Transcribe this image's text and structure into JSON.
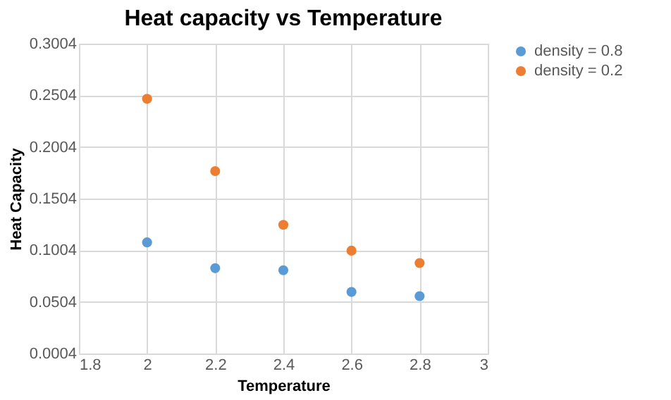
{
  "chart_data": {
    "type": "scatter",
    "title": "Heat capacity vs Temperature",
    "xlabel": "Temperature",
    "ylabel": "Heat Capacity",
    "x": [
      2,
      2.2,
      2.4,
      2.6,
      2.8
    ],
    "series": [
      {
        "name": "density = 0.8",
        "color": "#5b9bd5",
        "values": [
          0.108,
          0.083,
          0.081,
          0.06,
          0.056
        ]
      },
      {
        "name": "density = 0.2",
        "color": "#ed7d31",
        "values": [
          0.247,
          0.177,
          0.125,
          0.1,
          0.088
        ]
      }
    ],
    "xlim": [
      1.8,
      3
    ],
    "xticks": [
      1.8,
      2,
      2.2,
      2.4,
      2.6,
      2.8,
      3
    ],
    "ylim": [
      0.0004,
      0.3004
    ],
    "yticks": [
      0.0004,
      0.0504,
      0.1004,
      0.1504,
      0.2004,
      0.2504,
      0.3004
    ],
    "grid": true,
    "legend": "right",
    "marker": "circle"
  }
}
